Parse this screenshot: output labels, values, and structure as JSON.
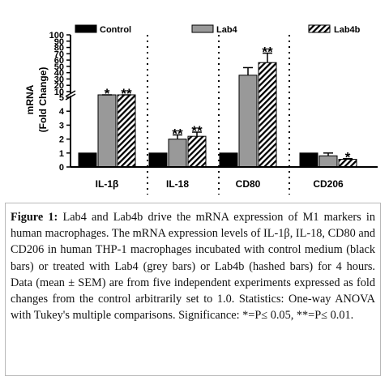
{
  "chart_data": {
    "type": "bar",
    "categories": [
      "IL-1β",
      "IL-18",
      "CD80",
      "CD206"
    ],
    "series": [
      {
        "name": "Control",
        "values": [
          1.0,
          1.0,
          1.0,
          1.0
        ],
        "sem": [
          0.0,
          0.0,
          0.0,
          0.0
        ],
        "color": "#000000",
        "pattern": "solid"
      },
      {
        "name": "Lab4",
        "values": [
          5.8,
          2.0,
          36,
          0.8
        ],
        "sem": [
          0.15,
          0.3,
          12,
          0.2
        ],
        "color": "#999999",
        "pattern": "solid"
      },
      {
        "name": "Lab4b",
        "values": [
          6.2,
          2.2,
          56,
          0.55
        ],
        "sem": [
          0.3,
          0.3,
          15,
          0.05
        ],
        "color": "#ffffff",
        "pattern": "hashed"
      }
    ],
    "significance": [
      {
        "category": 0,
        "series": 1,
        "label": "*"
      },
      {
        "category": 0,
        "series": 2,
        "label": "**"
      },
      {
        "category": 1,
        "series": 1,
        "label": "**"
      },
      {
        "category": 1,
        "series": 2,
        "label": "**"
      },
      {
        "category": 2,
        "series": 2,
        "label": "**"
      },
      {
        "category": 3,
        "series": 2,
        "label": "*"
      }
    ],
    "ylabel_line1": "mRNA",
    "ylabel_line2": "(Fold Change)",
    "y_axis": "broken",
    "ylim_lower": [
      0,
      5
    ],
    "ylim_upper": [
      10,
      100
    ],
    "yticks_lower": [
      "0",
      "1",
      "2",
      "3",
      "4",
      "5"
    ],
    "yticks_upper": [
      "10",
      "20",
      "30",
      "40",
      "50",
      "60",
      "70",
      "80",
      "90",
      "100"
    ],
    "legend_position": "top",
    "grid": false
  },
  "caption": {
    "label": "Figure 1:",
    "text": " Lab4 and Lab4b drive the mRNA expression of M1 markers in human macrophages. The mRNA expression levels of IL-1β, IL-18, CD80 and CD206 in human THP-1 macrophages incubated with control medium (black bars) or treated with Lab4 (grey bars) or Lab4b (hashed bars) for 4 hours. Data (mean ± SEM) are from five independent experiments expressed as fold changes from the control arbitrarily set to 1.0. Statistics: One-way ANOVA with Tukey's multiple comparisons. Significance: *=P≤ 0.05, **=P≤ 0.01."
  }
}
